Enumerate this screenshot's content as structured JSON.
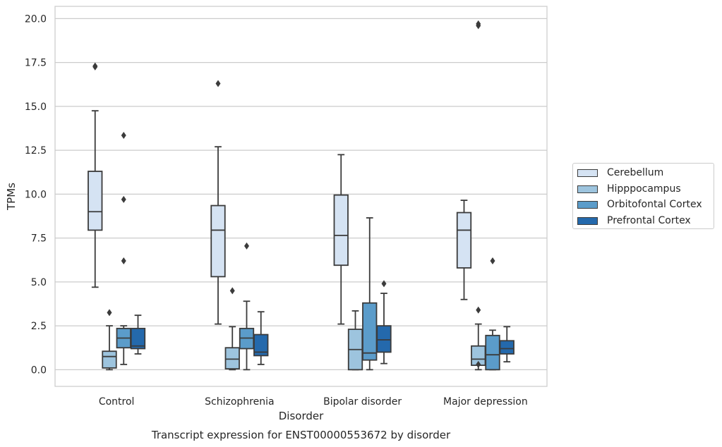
{
  "chart_data": {
    "type": "box",
    "title": "Transcript expression for ENST00000553672 by disorder",
    "xlabel": "Disorder",
    "ylabel": "TPMs",
    "ylim": [
      -0.95,
      20.7
    ],
    "yticks": [
      "0.0",
      "2.5",
      "5.0",
      "7.5",
      "10.0",
      "12.5",
      "15.0",
      "17.5",
      "20.0"
    ],
    "grid": "horizontal",
    "legend_position": "right",
    "categories": [
      "Control",
      "Schizophrenia",
      "Bipolar disorder",
      "Major depression"
    ],
    "series": [
      {
        "name": "Cerebellum",
        "color": "#d5e3f3",
        "boxes": [
          {
            "whisker_low": 4.7,
            "q1": 7.95,
            "median": 9.0,
            "q3": 11.3,
            "whisker_high": 14.75,
            "outliers": [
              17.25,
              17.3
            ]
          },
          {
            "whisker_low": 2.6,
            "q1": 5.3,
            "median": 7.95,
            "q3": 9.35,
            "whisker_high": 12.7,
            "outliers": [
              16.3
            ]
          },
          {
            "whisker_low": 2.6,
            "q1": 5.95,
            "median": 7.65,
            "q3": 9.95,
            "whisker_high": 12.25,
            "outliers": []
          },
          {
            "whisker_low": 4.0,
            "q1": 5.8,
            "median": 7.95,
            "q3": 8.95,
            "whisker_high": 9.65,
            "outliers": []
          }
        ]
      },
      {
        "name": "Hipppocampus",
        "color": "#9dc4de",
        "boxes": [
          {
            "whisker_low": 0.0,
            "q1": 0.1,
            "median": 0.75,
            "q3": 1.05,
            "whisker_high": 2.5,
            "outliers": [
              3.25
            ]
          },
          {
            "whisker_low": 0.0,
            "q1": 0.05,
            "median": 0.6,
            "q3": 1.25,
            "whisker_high": 2.45,
            "outliers": [
              4.5
            ]
          },
          {
            "whisker_low": 0.0,
            "q1": 0.0,
            "median": 1.15,
            "q3": 2.3,
            "whisker_high": 3.35,
            "outliers": []
          },
          {
            "whisker_low": 0.0,
            "q1": 0.25,
            "median": 0.6,
            "q3": 1.35,
            "whisker_high": 2.6,
            "outliers": [
              0.3,
              3.4,
              19.6,
              19.7
            ]
          }
        ]
      },
      {
        "name": "Orbitofontal Cortex",
        "color": "#5b9cca",
        "boxes": [
          {
            "whisker_low": 0.3,
            "q1": 1.25,
            "median": 1.8,
            "q3": 2.35,
            "whisker_high": 2.5,
            "outliers": [
              6.2,
              9.7,
              13.35
            ]
          },
          {
            "whisker_low": 0.0,
            "q1": 1.2,
            "median": 1.8,
            "q3": 2.35,
            "whisker_high": 3.9,
            "outliers": [
              7.05
            ]
          },
          {
            "whisker_low": 0.0,
            "q1": 0.55,
            "median": 0.95,
            "q3": 3.8,
            "whisker_high": 8.65,
            "outliers": []
          },
          {
            "whisker_low": 0.0,
            "q1": 0.0,
            "median": 0.85,
            "q3": 1.95,
            "whisker_high": 2.25,
            "outliers": [
              6.2
            ]
          }
        ]
      },
      {
        "name": "Prefrontal Cortex",
        "color": "#2469ac",
        "boxes": [
          {
            "whisker_low": 0.9,
            "q1": 1.2,
            "median": 1.35,
            "q3": 2.35,
            "whisker_high": 3.1,
            "outliers": []
          },
          {
            "whisker_low": 0.3,
            "q1": 0.8,
            "median": 1.0,
            "q3": 2.0,
            "whisker_high": 3.3,
            "outliers": []
          },
          {
            "whisker_low": 0.35,
            "q1": 1.0,
            "median": 1.7,
            "q3": 2.5,
            "whisker_high": 4.35,
            "outliers": [
              4.9
            ]
          },
          {
            "whisker_low": 0.45,
            "q1": 0.9,
            "median": 1.2,
            "q3": 1.65,
            "whisker_high": 2.45,
            "outliers": []
          }
        ]
      }
    ]
  }
}
